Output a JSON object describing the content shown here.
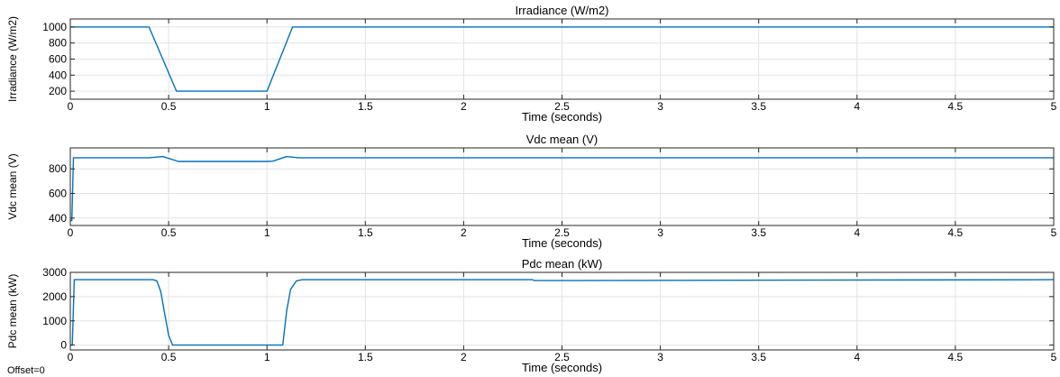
{
  "figure": {
    "offset_label": "Offset=0"
  },
  "chart_data": [
    {
      "type": "line",
      "title": "Irradiance (W/m2)",
      "xlabel": "Time (seconds)",
      "ylabel": "Irradiance (W/m2)",
      "xlim": [
        0,
        5
      ],
      "ylim": [
        100,
        1100
      ],
      "x_ticks": [
        0,
        0.5,
        1,
        1.5,
        2,
        2.5,
        3,
        3.5,
        4,
        4.5,
        5
      ],
      "y_ticks": [
        200,
        400,
        600,
        800,
        1000
      ],
      "grid": true,
      "color": "#0072BD",
      "series": [
        {
          "x": [
            0,
            0.4,
            0.54,
            1.0,
            1.13,
            5
          ],
          "y": [
            1000,
            1000,
            200,
            200,
            1000,
            1000
          ]
        }
      ]
    },
    {
      "type": "line",
      "title": "Vdc mean (V)",
      "xlabel": "Time (seconds)",
      "ylabel": "Vdc mean (V)",
      "xlim": [
        0,
        5
      ],
      "ylim": [
        340,
        970
      ],
      "x_ticks": [
        0,
        0.5,
        1,
        1.5,
        2,
        2.5,
        3,
        3.5,
        4,
        4.5,
        5
      ],
      "y_ticks": [
        400,
        600,
        800
      ],
      "grid": true,
      "color": "#0072BD",
      "series": [
        {
          "x": [
            0,
            0.008,
            0.016,
            0.4,
            0.47,
            0.55,
            1.0,
            1.03,
            1.1,
            1.16,
            5
          ],
          "y": [
            380,
            380,
            890,
            890,
            900,
            860,
            860,
            862,
            900,
            890,
            890
          ]
        }
      ]
    },
    {
      "type": "line",
      "title": "Pdc mean (kW)",
      "xlabel": "Time (seconds)",
      "ylabel": "Pdc mean (kW)",
      "xlim": [
        0,
        5
      ],
      "ylim": [
        -200,
        3000
      ],
      "x_ticks": [
        0,
        0.5,
        1,
        1.5,
        2,
        2.5,
        3,
        3.5,
        4,
        4.5,
        5
      ],
      "y_ticks": [
        0,
        1000,
        2000,
        3000
      ],
      "grid": true,
      "color": "#0072BD",
      "series": [
        {
          "x": [
            0,
            0.01,
            0.02,
            0.42,
            0.44,
            0.46,
            0.48,
            0.5,
            0.52,
            1.08,
            1.1,
            1.12,
            1.15,
            1.18,
            2.35,
            2.36,
            5
          ],
          "y": [
            0,
            0,
            2700,
            2700,
            2650,
            2200,
            1300,
            400,
            0,
            0,
            1400,
            2300,
            2650,
            2700,
            2700,
            2660,
            2700
          ]
        }
      ]
    }
  ]
}
